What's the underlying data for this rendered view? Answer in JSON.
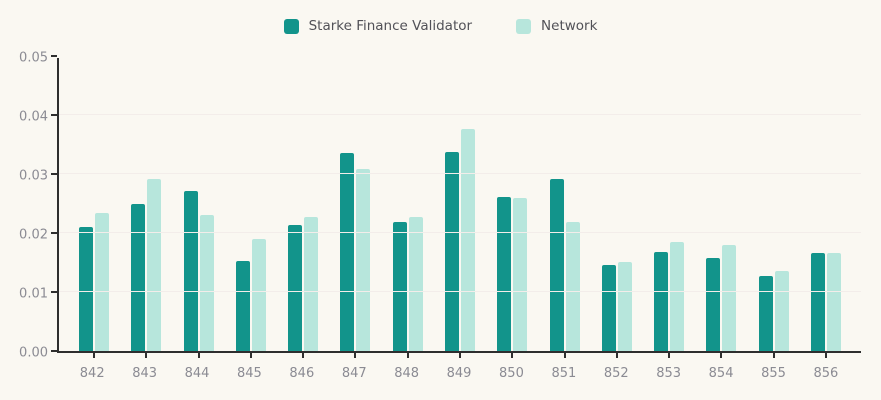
{
  "chart_data": {
    "type": "bar",
    "title": "",
    "xlabel": "",
    "ylabel": "",
    "categories": [
      "842",
      "843",
      "844",
      "845",
      "846",
      "847",
      "848",
      "849",
      "850",
      "851",
      "852",
      "853",
      "854",
      "855",
      "856"
    ],
    "series": [
      {
        "name": "Starke Finance Validator",
        "color": "#12948b",
        "values": [
          0.021,
          0.025,
          0.0271,
          0.0153,
          0.0214,
          0.0335,
          0.0218,
          0.0338,
          0.0261,
          0.0292,
          0.0146,
          0.0168,
          0.0158,
          0.0127,
          0.0166
        ]
      },
      {
        "name": "Network",
        "color": "#b7e6dc",
        "values": [
          0.0234,
          0.0292,
          0.0231,
          0.019,
          0.0228,
          0.0308,
          0.0227,
          0.0376,
          0.0259,
          0.0219,
          0.0151,
          0.0185,
          0.018,
          0.0136,
          0.0167
        ]
      }
    ],
    "ylim": [
      0,
      0.05
    ],
    "yticks": [
      "0.00",
      "0.01",
      "0.02",
      "0.03",
      "0.04",
      "0.05"
    ],
    "grid": true,
    "legend_position": "top-center"
  },
  "colors": {
    "background": "#faf8f2",
    "axis": "#2e2e2e",
    "tick_label": "#8b8b93",
    "legend_text": "#515157",
    "gridline": "#f3edea"
  }
}
